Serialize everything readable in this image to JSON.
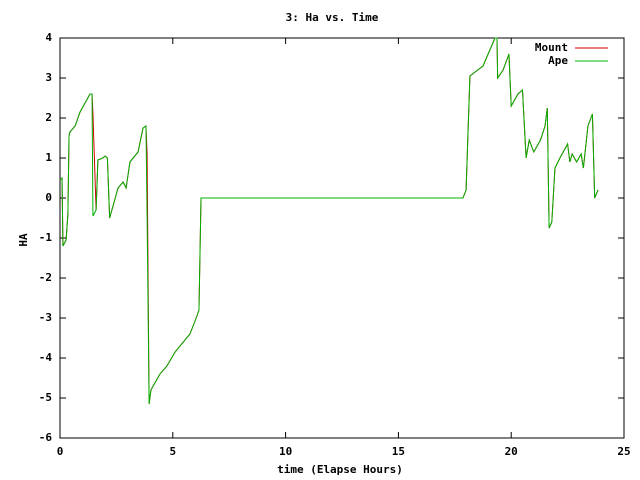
{
  "chart_data": {
    "type": "line",
    "title": "3: Ha vs. Time",
    "x_label": "time (Elapse Hours)",
    "y_label": "HA",
    "x": [
      0,
      0.09,
      0.13,
      0.27,
      0.35,
      0.4,
      0.44,
      0.67,
      0.89,
      1.33,
      1.42,
      1.46,
      1.6,
      1.68,
      1.9,
      2.0,
      2.1,
      2.2,
      2.35,
      2.57,
      2.8,
      2.93,
      3.1,
      3.46,
      3.68,
      3.81,
      3.86,
      3.95,
      4.03,
      4.43,
      4.74,
      5.1,
      5.76,
      6.07,
      6.16,
      6.25,
      17.86,
      18.0,
      18.17,
      18.4,
      18.75,
      19.28,
      19.37,
      19.4,
      19.64,
      19.9,
      20.0,
      20.3,
      20.5,
      20.66,
      20.8,
      21.0,
      21.3,
      21.5,
      21.6,
      21.68,
      21.8,
      21.94,
      22.16,
      22.5,
      22.6,
      22.7,
      22.9,
      23.1,
      23.2,
      23.4,
      23.6,
      23.7,
      23.85
    ],
    "series": [
      {
        "name": "Mount",
        "color": "#d00000",
        "values": [
          0.45,
          0.5,
          -1.2,
          -1.05,
          -0.4,
          1.55,
          1.65,
          1.8,
          2.15,
          2.6,
          2.6,
          2.1,
          -0.3,
          0.95,
          1.0,
          1.05,
          1.0,
          -0.5,
          -0.2,
          0.25,
          0.4,
          0.25,
          0.9,
          1.15,
          1.75,
          1.8,
          1.1,
          -5.15,
          -4.8,
          -4.4,
          -4.2,
          -3.85,
          -3.4,
          -2.95,
          -2.8,
          0,
          0,
          0.2,
          3.05,
          3.15,
          3.3,
          4.0,
          4.0,
          3.0,
          3.2,
          3.6,
          2.3,
          2.6,
          2.7,
          1.0,
          1.45,
          1.15,
          1.45,
          1.8,
          2.25,
          -0.75,
          -0.6,
          0.75,
          1.0,
          1.35,
          0.9,
          1.1,
          0.9,
          1.1,
          0.75,
          1.8,
          2.1,
          0.0,
          0.2
        ]
      },
      {
        "name": "Ape",
        "color": "#00b000",
        "values": [
          0.45,
          0.5,
          -1.2,
          -1.05,
          -0.4,
          1.55,
          1.65,
          1.8,
          2.15,
          2.6,
          2.6,
          -0.45,
          -0.3,
          0.95,
          1.0,
          1.05,
          1.0,
          -0.5,
          -0.2,
          0.25,
          0.4,
          0.25,
          0.9,
          1.15,
          1.75,
          1.8,
          -0.45,
          -5.15,
          -4.8,
          -4.4,
          -4.2,
          -3.85,
          -3.4,
          -2.95,
          -2.8,
          0,
          0,
          0.2,
          3.05,
          3.15,
          3.3,
          4.0,
          4.0,
          3.0,
          3.2,
          3.6,
          2.3,
          2.6,
          2.7,
          1.0,
          1.45,
          1.15,
          1.45,
          1.8,
          2.25,
          -0.75,
          -0.6,
          0.75,
          1.0,
          1.35,
          0.9,
          1.1,
          0.9,
          1.1,
          0.75,
          1.8,
          2.1,
          0.0,
          0.2
        ]
      }
    ],
    "xlim": [
      0,
      25
    ],
    "xticks": [
      0,
      5,
      10,
      15,
      20,
      25
    ],
    "ylim": [
      -6,
      4
    ],
    "yticks": [
      -6,
      -5,
      -4,
      -3,
      -2,
      -1,
      0,
      1,
      2,
      3,
      4
    ],
    "legend": "upper right"
  }
}
